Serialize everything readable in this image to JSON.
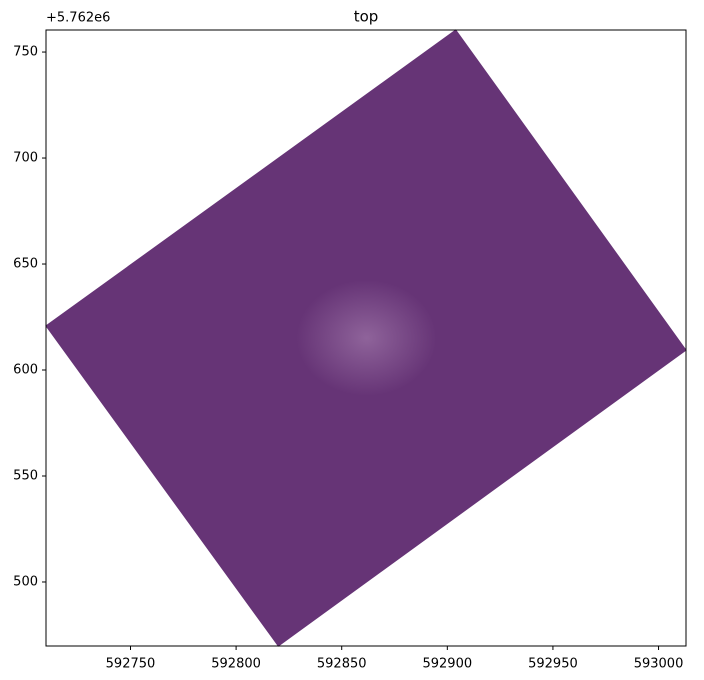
{
  "chart_data": {
    "type": "polygon",
    "title": "top",
    "y_offset_text": "+5.762e6",
    "x": [
      592904,
      593013,
      592820,
      592710
    ],
    "y": [
      760.4,
      609.4,
      469.8,
      620.8
    ],
    "color": "#663476",
    "xlim": [
      592710,
      593013
    ],
    "ylim": [
      469.8,
      760.4
    ],
    "xticks": [
      592750,
      592800,
      592850,
      592900,
      592950,
      593000
    ],
    "yticks": [
      500,
      550,
      600,
      650,
      700,
      750
    ]
  }
}
